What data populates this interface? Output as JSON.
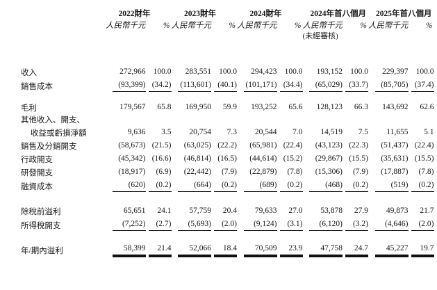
{
  "table": {
    "periods": [
      {
        "year": "2022財年",
        "unit": "人民幣千元",
        "pct": "%"
      },
      {
        "year": "2023財年",
        "unit": "人民幣千元",
        "pct": "%"
      },
      {
        "year": "2024財年",
        "unit": "人民幣千元",
        "pct": "%"
      },
      {
        "year": "2024年首八個月",
        "unit": "人民幣千元",
        "pct": "%",
        "note": "(未經審核)"
      },
      {
        "year": "2025年首八個月",
        "unit": "人民幣千元",
        "pct": "%"
      }
    ],
    "rows": [
      {
        "label": "收入",
        "cells": [
          "272,966",
          "100.0",
          "283,551",
          "100.0",
          "294,423",
          "100.0",
          "193,152",
          "100.0",
          "229,397",
          "100.0"
        ]
      },
      {
        "label": "銷售成本",
        "cells": [
          "(93,399)",
          "(34.2)",
          "(113,601)",
          "(40.1)",
          "(101,171)",
          "(34.4)",
          "(65,029)",
          "(33.7)",
          "(85,705)",
          "(37.4)"
        ]
      },
      {
        "label": "毛利",
        "cells": [
          "179,567",
          "65.8",
          "169,950",
          "59.9",
          "193,252",
          "65.6",
          "128,123",
          "66.3",
          "143,692",
          "62.6"
        ]
      },
      {
        "label": "其他收入、開支、",
        "cells": []
      },
      {
        "label": "收益或虧損淨額",
        "cells": [
          "9,636",
          "3.5",
          "20,754",
          "7.3",
          "20,544",
          "7.0",
          "14,519",
          "7.5",
          "11,655",
          "5.1"
        ]
      },
      {
        "label": "銷售及分銷開支",
        "cells": [
          "(58,673)",
          "(21.5)",
          "(63,025)",
          "(22.2)",
          "(65,981)",
          "(22.4)",
          "(43,123)",
          "(22.3)",
          "(51,437)",
          "(22.4)"
        ]
      },
      {
        "label": "行政開支",
        "cells": [
          "(45,342)",
          "(16.6)",
          "(46,814)",
          "(16.5)",
          "(44,614)",
          "(15.2)",
          "(29,867)",
          "(15.5)",
          "(35,631)",
          "(15.5)"
        ]
      },
      {
        "label": "研發開支",
        "cells": [
          "(18,917)",
          "(6.9)",
          "(22,442)",
          "(7.9)",
          "(22,879)",
          "(7.8)",
          "(15,306)",
          "(7.9)",
          "(17,887)",
          "(7.8)"
        ]
      },
      {
        "label": "融資成本",
        "cells": [
          "(620)",
          "(0.2)",
          "(664)",
          "(0.2)",
          "(689)",
          "(0.2)",
          "(468)",
          "(0.2)",
          "(519)",
          "(0.2)"
        ]
      },
      {
        "label": "除稅前溢利",
        "cells": [
          "65,651",
          "24.1",
          "57,759",
          "20.4",
          "79,633",
          "27.0",
          "53,878",
          "27.9",
          "49,873",
          "21.7"
        ]
      },
      {
        "label": "所得稅開支",
        "cells": [
          "(7,252)",
          "(2.7)",
          "(5,693)",
          "(2.0)",
          "(9,124)",
          "(3.1)",
          "(6,120)",
          "(3.2)",
          "(4,646)",
          "(2.0)"
        ]
      },
      {
        "label": "年/期內溢利",
        "cells": [
          "58,399",
          "21.4",
          "52,066",
          "18.4",
          "70,509",
          "23.9",
          "47,758",
          "24.7",
          "45,227",
          "19.7"
        ]
      }
    ]
  }
}
